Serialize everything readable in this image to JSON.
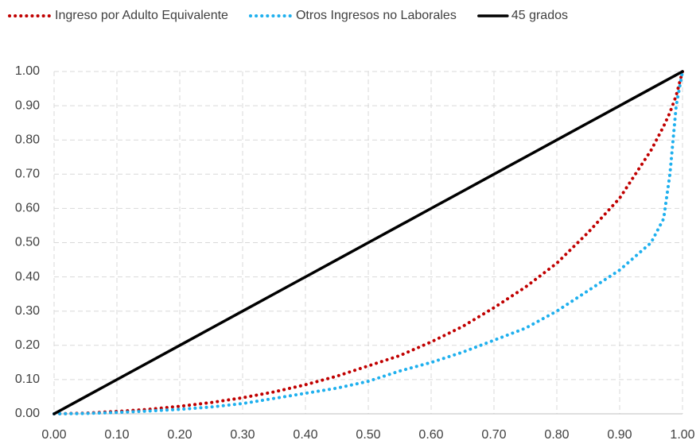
{
  "chart_data": {
    "type": "line",
    "x": [
      0,
      0.05,
      0.1,
      0.15,
      0.2,
      0.25,
      0.3,
      0.35,
      0.4,
      0.45,
      0.5,
      0.55,
      0.6,
      0.65,
      0.7,
      0.75,
      0.8,
      0.85,
      0.9,
      0.95,
      0.97,
      0.98,
      0.99,
      1.0
    ],
    "series": [
      {
        "name": "Ingreso por Adulto Equivalente",
        "color": "#c00000",
        "line_style": "dotted",
        "values": [
          0,
          0.002,
          0.007,
          0.013,
          0.022,
          0.033,
          0.047,
          0.064,
          0.085,
          0.11,
          0.14,
          0.17,
          0.21,
          0.255,
          0.31,
          0.37,
          0.44,
          0.53,
          0.63,
          0.77,
          0.84,
          0.88,
          0.93,
          1.0
        ]
      },
      {
        "name": "Otros Ingresos no Laborales",
        "color": "#1fb0ee",
        "line_style": "dotted",
        "values": [
          0,
          0.001,
          0.004,
          0.008,
          0.013,
          0.02,
          0.03,
          0.045,
          0.06,
          0.075,
          0.095,
          0.125,
          0.15,
          0.18,
          0.215,
          0.25,
          0.3,
          0.36,
          0.42,
          0.5,
          0.57,
          0.7,
          0.9,
          1.0
        ]
      },
      {
        "name": "45 grados",
        "color": "#000000",
        "line_style": "solid",
        "values": [
          0,
          0.05,
          0.1,
          0.15,
          0.2,
          0.25,
          0.3,
          0.35,
          0.4,
          0.45,
          0.5,
          0.55,
          0.6,
          0.65,
          0.7,
          0.75,
          0.8,
          0.85,
          0.9,
          0.95,
          0.97,
          0.98,
          0.99,
          1.0
        ]
      }
    ],
    "xlim": [
      0,
      1
    ],
    "ylim": [
      0,
      1
    ],
    "xticks": [
      {
        "value": 0,
        "label": "0.00"
      },
      {
        "value": 0.1,
        "label": "0.10"
      },
      {
        "value": 0.2,
        "label": "0.20"
      },
      {
        "value": 0.3,
        "label": "0.30"
      },
      {
        "value": 0.4,
        "label": "0.40"
      },
      {
        "value": 0.5,
        "label": "0.50"
      },
      {
        "value": 0.6,
        "label": "0.60"
      },
      {
        "value": 0.7,
        "label": "0.70"
      },
      {
        "value": 0.8,
        "label": "0.80"
      },
      {
        "value": 0.9,
        "label": "0.90"
      },
      {
        "value": 1,
        "label": "1.00"
      }
    ],
    "yticks": [
      {
        "value": 0,
        "label": "0.00"
      },
      {
        "value": 0.1,
        "label": "0.10"
      },
      {
        "value": 0.2,
        "label": "0.20"
      },
      {
        "value": 0.3,
        "label": "0.30"
      },
      {
        "value": 0.4,
        "label": "0.40"
      },
      {
        "value": 0.5,
        "label": "0.50"
      },
      {
        "value": 0.6,
        "label": "0.60"
      },
      {
        "value": 0.7,
        "label": "0.70"
      },
      {
        "value": 0.8,
        "label": "0.80"
      },
      {
        "value": 0.9,
        "label": "0.90"
      },
      {
        "value": 1,
        "label": "1.00"
      }
    ],
    "grid": true,
    "legend": "top"
  }
}
